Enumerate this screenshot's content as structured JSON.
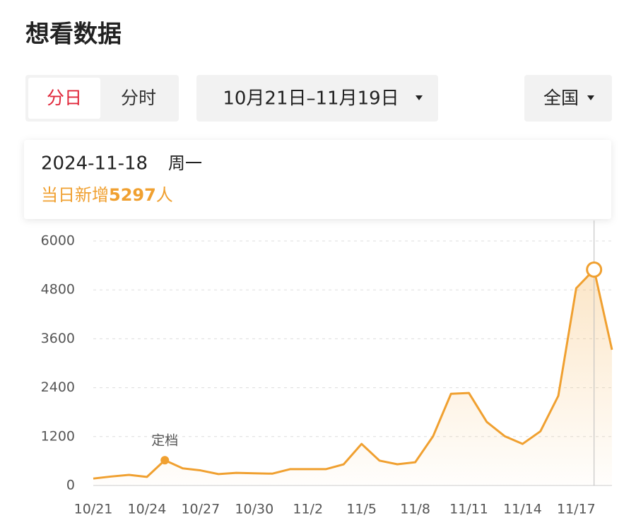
{
  "header": {
    "title": "想看数据"
  },
  "controls": {
    "tabs": [
      "分日",
      "分时"
    ],
    "selected_tab": 0,
    "date_range": "10月21日–11月19日",
    "region": "全国"
  },
  "tooltip": {
    "date": "2024-11-18",
    "weekday": "周一",
    "prefix": "当日新增",
    "suffix": "人"
  },
  "chart_data": {
    "type": "line",
    "categories": [
      "10/21",
      null,
      null,
      "10/24",
      null,
      null,
      "10/27",
      null,
      null,
      "10/30",
      null,
      null,
      "11/2",
      null,
      null,
      "11/5",
      null,
      null,
      "11/8",
      null,
      null,
      "11/11",
      null,
      null,
      "11/14",
      null,
      null,
      "11/17",
      null,
      null
    ],
    "series": [
      {
        "name": "当日新增",
        "color": "#f0a030",
        "values": [
          170,
          220,
          260,
          210,
          620,
          420,
          370,
          280,
          310,
          300,
          290,
          400,
          400,
          400,
          520,
          1020,
          610,
          520,
          570,
          1210,
          2250,
          2270,
          1560,
          1210,
          1020,
          1330,
          2200,
          4840,
          5297,
          3330
        ]
      }
    ],
    "ylim": [
      0,
      6000
    ],
    "yticks": [
      0,
      1200,
      2400,
      3600,
      4800,
      6000
    ],
    "grid": true,
    "highlight": 28,
    "annotations": [
      {
        "text": "定档",
        "index": 4
      }
    ]
  }
}
